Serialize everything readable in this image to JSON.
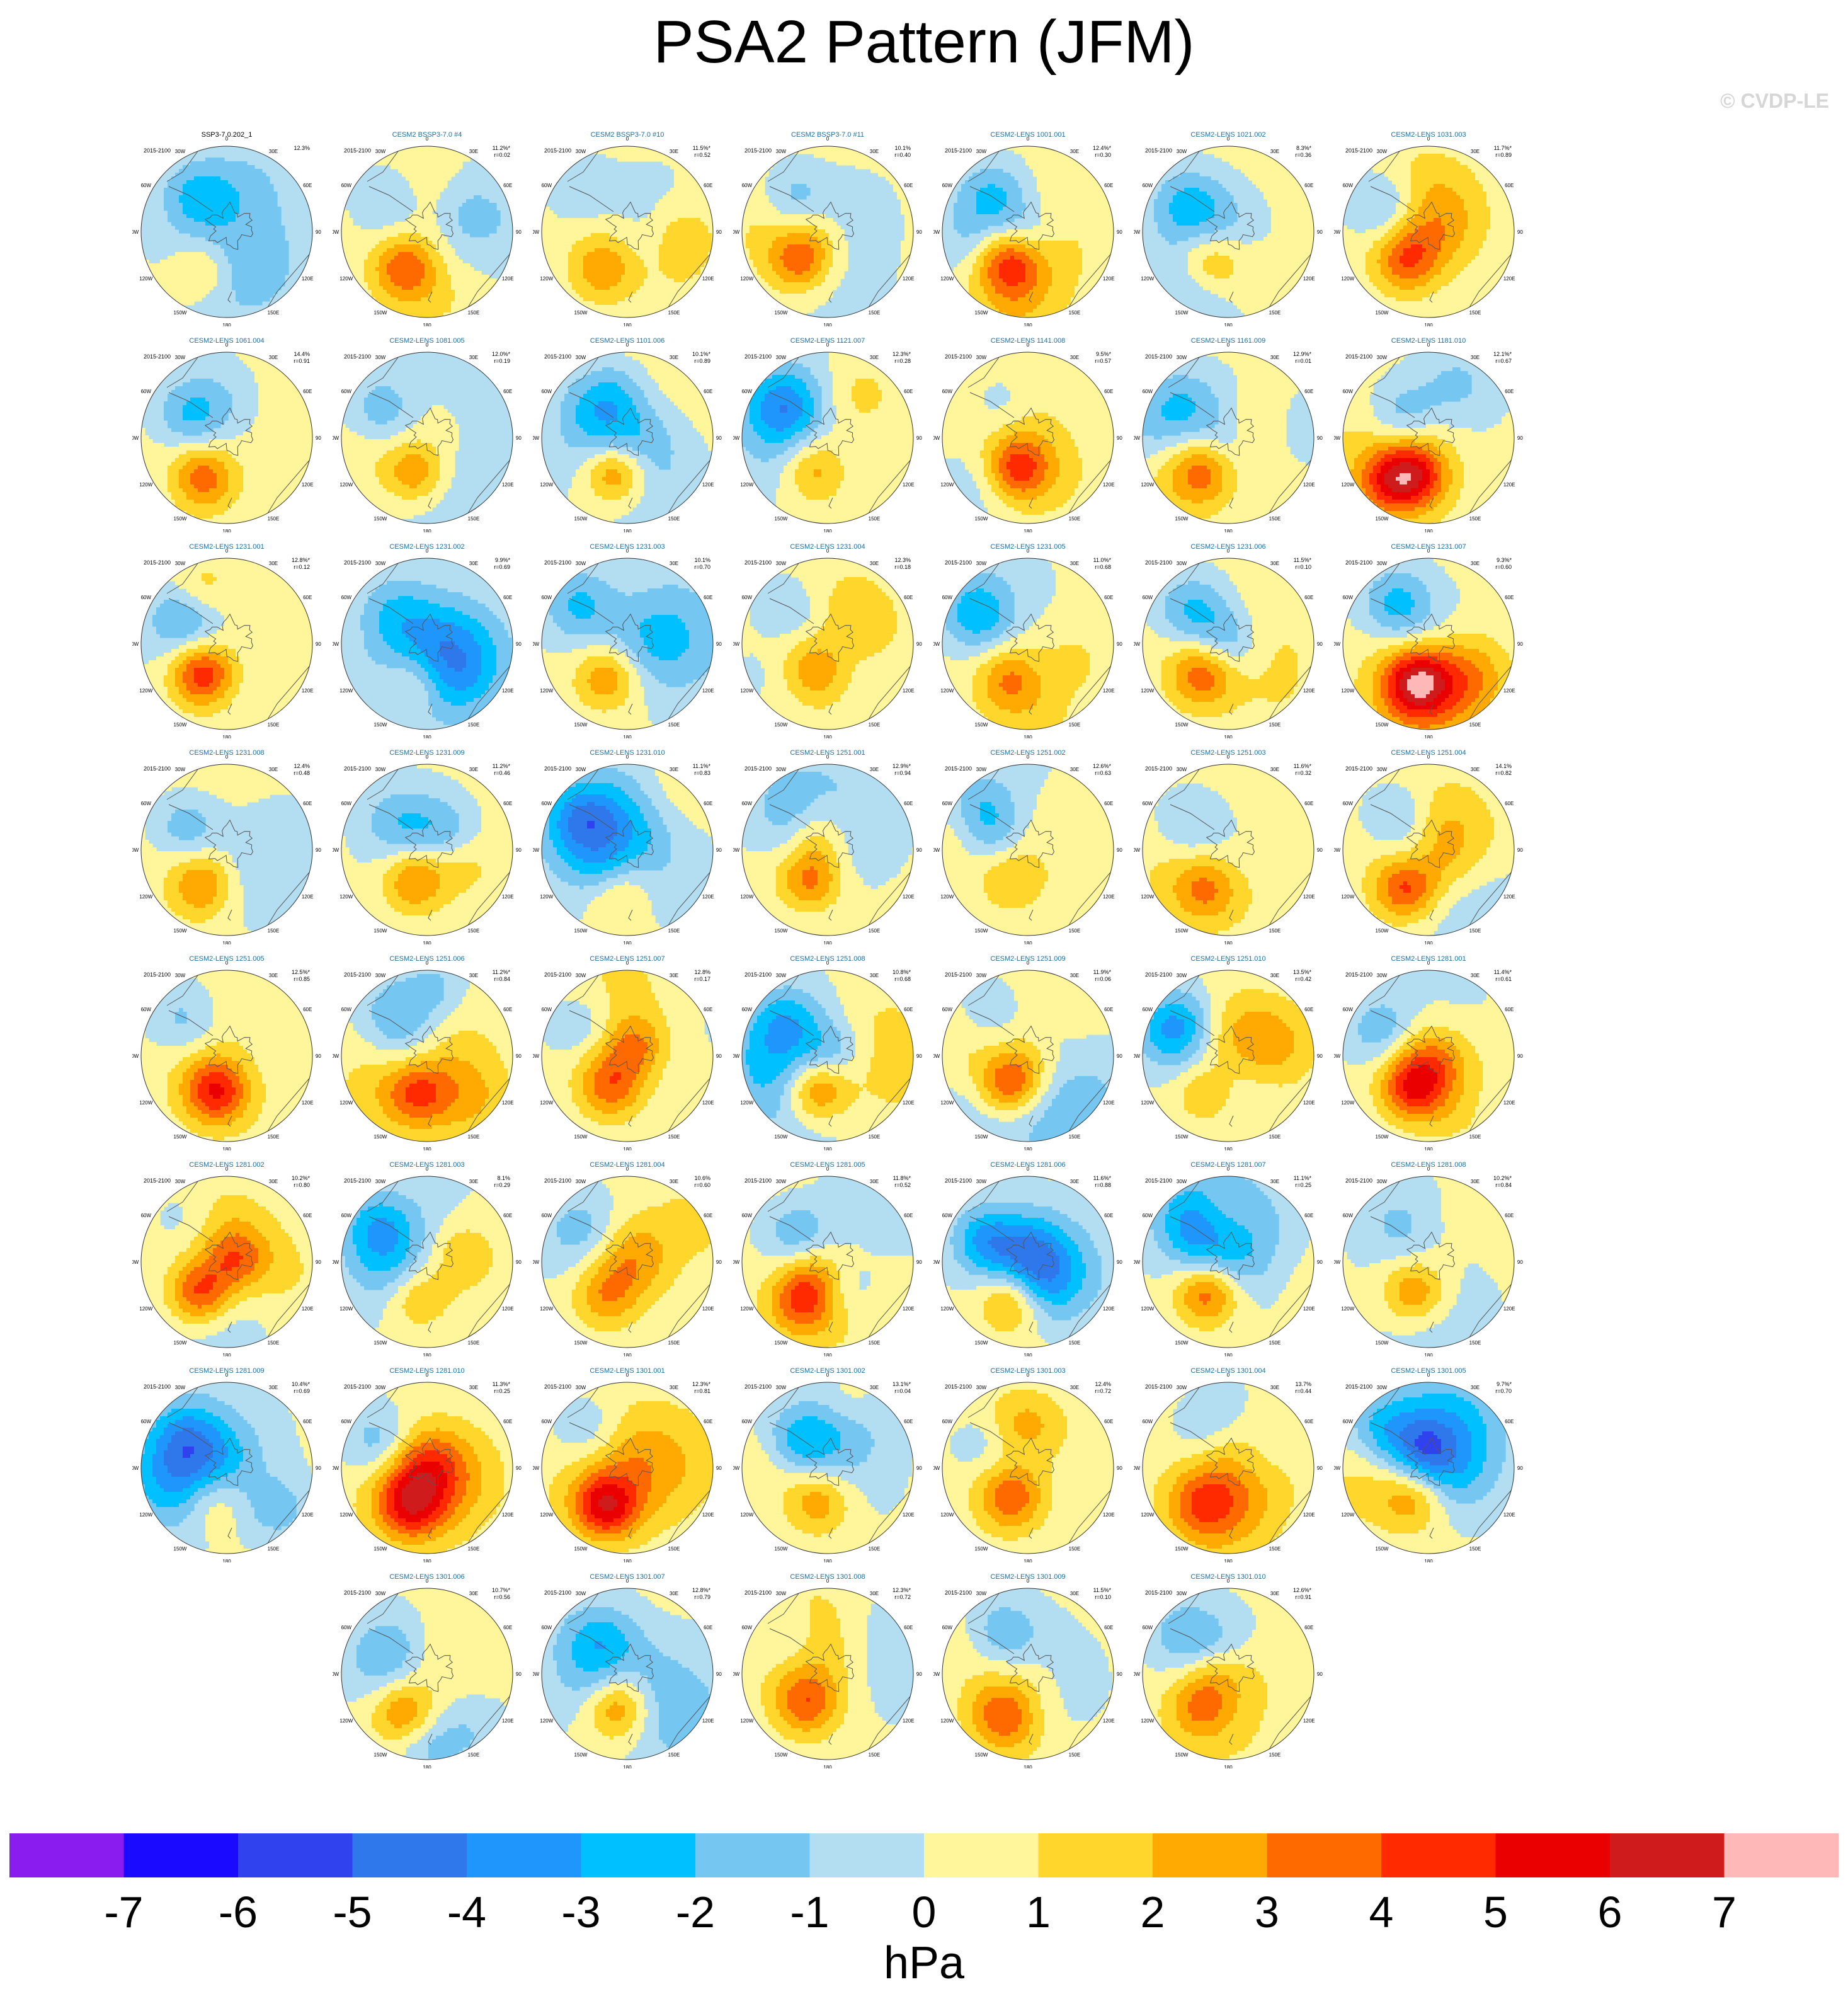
{
  "title": "PSA2 Pattern (JFM)",
  "copyright": "© CVDP-LE",
  "period": "2015-2100",
  "map_labels": {
    "lat0": "0",
    "e30": "30E",
    "e60": "60E",
    "e90": "90E",
    "e120": "120E",
    "e150": "150E",
    "s180": "180",
    "w150": "150W",
    "w120": "120W",
    "w90": "90W",
    "w60": "60W",
    "w30": "30W"
  },
  "colors": {
    "coast": "#555555",
    "levels": [
      "#8a1cf0",
      "#1a0aff",
      "#2f42ee",
      "#2f78ec",
      "#1e96fb",
      "#00c0ff",
      "#75c6f0",
      "#b3def1",
      "#fff59a",
      "#ffd72c",
      "#ffa903",
      "#ff6a00",
      "#ff2a00",
      "#ea0000",
      "#cf1b1b",
      "#ffb8b8"
    ]
  },
  "chart_data": {
    "type": "heatmap",
    "projection": "south polar stereographic",
    "colorbar": {
      "ticks": [
        "-7",
        "-6",
        "-5",
        "-4",
        "-3",
        "-2",
        "-1",
        "0",
        "1",
        "2",
        "3",
        "4",
        "5",
        "6",
        "7"
      ],
      "units": "hPa",
      "range": [
        -8,
        8
      ]
    },
    "panels": [
      {
        "name": "SSP3-7.0.202_1",
        "pct": "12.3%",
        "r": "",
        "obs": true
      },
      {
        "name": "CESM2 BSSP3-7.0 #4",
        "pct": "11.2%*",
        "r": "r=0.02"
      },
      {
        "name": "CESM2 BSSP3-7.0 #10",
        "pct": "11.5%*",
        "r": "r=0.52"
      },
      {
        "name": "CESM2 BSSP3-7.0 #11",
        "pct": "10.1%",
        "r": "r=0.40"
      },
      {
        "name": "CESM2-LENS 1001.001",
        "pct": "12.4%*",
        "r": "r=0.30"
      },
      {
        "name": "CESM2-LENS 1021.002",
        "pct": "8.3%*",
        "r": "r=0.36"
      },
      {
        "name": "CESM2-LENS 1031.003",
        "pct": "11.7%*",
        "r": "r=0.89"
      },
      {
        "name": "CESM2-LENS 1061.004",
        "pct": "14.4%",
        "r": "r=0.91"
      },
      {
        "name": "CESM2-LENS 1081.005",
        "pct": "12.0%*",
        "r": "r=0.19"
      },
      {
        "name": "CESM2-LENS 1101.006",
        "pct": "10.1%*",
        "r": "r=0.89"
      },
      {
        "name": "CESM2-LENS 1121.007",
        "pct": "12.3%*",
        "r": "r=0.28"
      },
      {
        "name": "CESM2-LENS 1141.008",
        "pct": "9.5%*",
        "r": "r=0.57"
      },
      {
        "name": "CESM2-LENS 1161.009",
        "pct": "12.9%*",
        "r": "r=0.01"
      },
      {
        "name": "CESM2-LENS 1181.010",
        "pct": "12.1%*",
        "r": "r=0.67"
      },
      {
        "name": "CESM2-LENS 1231.001",
        "pct": "12.8%*",
        "r": "r=0.12"
      },
      {
        "name": "CESM2-LENS 1231.002",
        "pct": "9.9%*",
        "r": "r=0.69"
      },
      {
        "name": "CESM2-LENS 1231.003",
        "pct": "10.1%",
        "r": "r=0.70"
      },
      {
        "name": "CESM2-LENS 1231.004",
        "pct": "12.3%",
        "r": "r=0.18"
      },
      {
        "name": "CESM2-LENS 1231.005",
        "pct": "11.0%*",
        "r": "r=0.68"
      },
      {
        "name": "CESM2-LENS 1231.006",
        "pct": "11.5%*",
        "r": "r=0.10"
      },
      {
        "name": "CESM2-LENS 1231.007",
        "pct": "9.3%*",
        "r": "r=0.60"
      },
      {
        "name": "CESM2-LENS 1231.008",
        "pct": "12.4%",
        "r": "r=0.48"
      },
      {
        "name": "CESM2-LENS 1231.009",
        "pct": "11.2%*",
        "r": "r=0.46"
      },
      {
        "name": "CESM2-LENS 1231.010",
        "pct": "11.1%*",
        "r": "r=0.83"
      },
      {
        "name": "CESM2-LENS 1251.001",
        "pct": "12.9%*",
        "r": "r=0.94"
      },
      {
        "name": "CESM2-LENS 1251.002",
        "pct": "12.6%*",
        "r": "r=0.63"
      },
      {
        "name": "CESM2-LENS 1251.003",
        "pct": "11.6%*",
        "r": "r=0.32"
      },
      {
        "name": "CESM2-LENS 1251.004",
        "pct": "14.1%",
        "r": "r=0.82"
      },
      {
        "name": "CESM2-LENS 1251.005",
        "pct": "12.5%*",
        "r": "r=0.85"
      },
      {
        "name": "CESM2-LENS 1251.006",
        "pct": "11.2%*",
        "r": "r=0.84"
      },
      {
        "name": "CESM2-LENS 1251.007",
        "pct": "12.8%",
        "r": "r=0.17"
      },
      {
        "name": "CESM2-LENS 1251.008",
        "pct": "10.8%*",
        "r": "r=0.68"
      },
      {
        "name": "CESM2-LENS 1251.009",
        "pct": "11.9%*",
        "r": "r=0.06"
      },
      {
        "name": "CESM2-LENS 1251.010",
        "pct": "13.5%*",
        "r": "r=0.42"
      },
      {
        "name": "CESM2-LENS 1281.001",
        "pct": "11.4%*",
        "r": "r=0.61"
      },
      {
        "name": "CESM2-LENS 1281.002",
        "pct": "10.2%*",
        "r": "r=0.80"
      },
      {
        "name": "CESM2-LENS 1281.003",
        "pct": "8.1%",
        "r": "r=0.29"
      },
      {
        "name": "CESM2-LENS 1281.004",
        "pct": "10.6%",
        "r": "r=0.60"
      },
      {
        "name": "CESM2-LENS 1281.005",
        "pct": "11.8%*",
        "r": "r=0.52"
      },
      {
        "name": "CESM2-LENS 1281.006",
        "pct": "11.6%*",
        "r": "r=0.88"
      },
      {
        "name": "CESM2-LENS 1281.007",
        "pct": "11.1%*",
        "r": "r=0.25"
      },
      {
        "name": "CESM2-LENS 1281.008",
        "pct": "10.2%*",
        "r": "r=0.84"
      },
      {
        "name": "CESM2-LENS 1281.009",
        "pct": "10.4%*",
        "r": "r=0.69"
      },
      {
        "name": "CESM2-LENS 1281.010",
        "pct": "11.3%*",
        "r": "r=0.25"
      },
      {
        "name": "CESM2-LENS 1301.001",
        "pct": "12.3%*",
        "r": "r=0.81"
      },
      {
        "name": "CESM2-LENS 1301.002",
        "pct": "13.1%*",
        "r": "r=0.04"
      },
      {
        "name": "CESM2-LENS 1301.003",
        "pct": "12.4%",
        "r": "r=0.72"
      },
      {
        "name": "CESM2-LENS 1301.004",
        "pct": "13.7%",
        "r": "r=0.44"
      },
      {
        "name": "CESM2-LENS 1301.005",
        "pct": "9.7%*",
        "r": "r=0.70"
      },
      {
        "name": "CESM2-LENS 1301.006",
        "pct": "10.7%*",
        "r": "r=0.56"
      },
      {
        "name": "CESM2-LENS 1301.007",
        "pct": "12.8%*",
        "r": "r=0.79"
      },
      {
        "name": "CESM2-LENS 1301.008",
        "pct": "12.3%*",
        "r": "r=0.72"
      },
      {
        "name": "CESM2-LENS 1301.009",
        "pct": "11.5%*",
        "r": "r=0.10"
      },
      {
        "name": "CESM2-LENS 1301.010",
        "pct": "12.6%*",
        "r": "r=0.91"
      }
    ]
  }
}
